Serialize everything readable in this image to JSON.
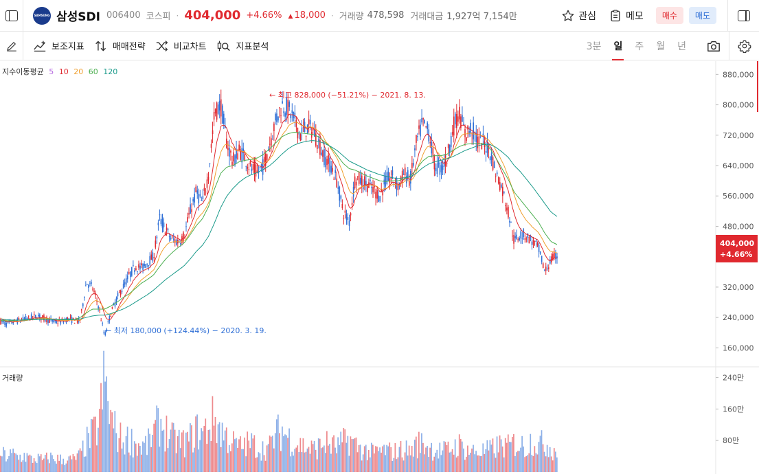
{
  "header": {
    "logo_text": "SAMSUNG",
    "name": "삼성SDI",
    "code": "006400",
    "market": "코스피",
    "price": "404,000",
    "change_rate": "+4.66%",
    "change_amount": "18,000",
    "volume_label": "거래량",
    "volume_value": "478,598",
    "amount_label": "거래대금",
    "amount_value": "1,927억 7,154만",
    "watch_label": "관심",
    "memo_label": "메모",
    "buy_label": "매수",
    "sell_label": "매도"
  },
  "toolbar": {
    "indicator_label": "보조지표",
    "strategy_label": "매매전략",
    "compare_label": "비교차트",
    "analysis_label": "지표분석",
    "periods": [
      "3분",
      "일",
      "주",
      "월",
      "년"
    ],
    "active_period": "일"
  },
  "colors": {
    "up": "#e0292f",
    "down": "#2f6fd6",
    "ma5": "#b466e0",
    "ma10": "#e0292f",
    "ma20": "#f0a030",
    "ma60": "#4caf50",
    "ma120": "#1a9a8a"
  },
  "chart_data": {
    "type": "line",
    "title": "",
    "ma_legend_label": "지수이동평균",
    "ma_periods": [
      "5",
      "10",
      "20",
      "60",
      "120"
    ],
    "price_axis_ticks": [
      "880,000",
      "800,000",
      "720,000",
      "640,000",
      "560,000",
      "480,000",
      "400,000",
      "320,000",
      "240,000",
      "160,000"
    ],
    "price_ylim": [
      110000,
      915000
    ],
    "current_price_label": "404,000",
    "current_change_label": "+4.66%",
    "high_annotation": "← 최고 828,000 (−51.21%) − 2021. 8. 13.",
    "low_annotation": "← 최저 180,000 (+124.44%) − 2020. 3. 19.",
    "price_series": [
      230000,
      222000,
      228000,
      232000,
      236000,
      240000,
      244000,
      238000,
      232000,
      228000,
      230000,
      236000,
      232000,
      230000,
      332000,
      320000,
      270000,
      190000,
      250000,
      290000,
      320000,
      350000,
      375000,
      370000,
      385000,
      400000,
      500000,
      470000,
      445000,
      440000,
      455000,
      520000,
      570000,
      540000,
      620000,
      780000,
      800000,
      700000,
      650000,
      680000,
      660000,
      630000,
      620000,
      640000,
      700000,
      760000,
      800000,
      790000,
      760000,
      720000,
      740000,
      735000,
      700000,
      660000,
      640000,
      600000,
      520000,
      490000,
      610000,
      600000,
      590000,
      575000,
      560000,
      600000,
      610000,
      585000,
      620000,
      600000,
      700000,
      750000,
      730000,
      640000,
      630000,
      660000,
      740000,
      780000,
      720000,
      740000,
      705000,
      700000,
      680000,
      620000,
      580000,
      520000,
      440000,
      460000,
      455000,
      440000,
      420000,
      360000,
      390000,
      404000
    ],
    "ma60_series": [
      232000,
      231000,
      232000,
      233000,
      234000,
      235000,
      236000,
      236000,
      236000,
      235000,
      234000,
      234000,
      234000,
      240000,
      252000,
      262000,
      262000,
      262000,
      270000,
      280000,
      292000,
      302000,
      316000,
      330000,
      340000,
      352000,
      374000,
      394000,
      410000,
      424000,
      436000,
      458000,
      482000,
      500000,
      532000,
      580000,
      620000,
      636000,
      640000,
      650000,
      654000,
      656000,
      660000,
      670000,
      684000,
      700000,
      716000,
      724000,
      728000,
      726000,
      724000,
      722000,
      716000,
      702000,
      688000,
      668000,
      646000,
      632000,
      628000,
      620000,
      612000,
      606000,
      600000,
      598000,
      600000,
      600000,
      605000,
      612000,
      630000,
      652000,
      664000,
      666000,
      666000,
      670000,
      680000,
      690000,
      696000,
      698000,
      698000,
      698000,
      686000,
      660000,
      632000,
      604000,
      570000,
      550000,
      530000,
      510000,
      490000,
      462000,
      440000,
      432000
    ],
    "ma120_series": [
      236000,
      234000,
      233000,
      233000,
      233000,
      234000,
      235000,
      235000,
      235000,
      235000,
      235000,
      235000,
      235000,
      236000,
      240000,
      244000,
      246000,
      246000,
      250000,
      256000,
      262000,
      270000,
      280000,
      290000,
      300000,
      312000,
      326000,
      340000,
      352000,
      364000,
      376000,
      394000,
      414000,
      430000,
      454000,
      490000,
      530000,
      560000,
      580000,
      596000,
      608000,
      616000,
      622000,
      630000,
      640000,
      654000,
      670000,
      684000,
      694000,
      700000,
      704000,
      706000,
      704000,
      698000,
      690000,
      680000,
      666000,
      652000,
      644000,
      636000,
      628000,
      622000,
      616000,
      612000,
      608000,
      606000,
      608000,
      610000,
      620000,
      634000,
      644000,
      650000,
      654000,
      658000,
      664000,
      672000,
      680000,
      686000,
      692000,
      696000,
      696000,
      688000,
      676000,
      662000,
      640000,
      624000,
      604000,
      584000,
      562000,
      540000,
      518000,
      506000
    ],
    "volume_axis_ticks": [
      "240만",
      "160만",
      "80만"
    ],
    "volume_ylim": [
      0,
      2550000
    ],
    "volume_label": "거래량",
    "volume_series": [
      450000,
      380000,
      420000,
      350000,
      400000,
      300000,
      330000,
      280000,
      360000,
      320000,
      300000,
      290000,
      310000,
      400000,
      700000,
      900000,
      1100000,
      2200000,
      1300000,
      900000,
      750000,
      800000,
      700000,
      600000,
      650000,
      900000,
      1200000,
      1000000,
      800000,
      750000,
      700000,
      800000,
      1000000,
      900000,
      1100000,
      1300000,
      1000000,
      850000,
      700000,
      600000,
      650000,
      700000,
      600000,
      550000,
      600000,
      900000,
      1000000,
      850000,
      700000,
      650000,
      600000,
      550000,
      600000,
      700000,
      650000,
      600000,
      700000,
      800000,
      650000,
      550000,
      500000,
      450000,
      500000,
      520000,
      480000,
      500000,
      550000,
      500000,
      650000,
      700000,
      600000,
      550000,
      500000,
      520000,
      600000,
      650000,
      550000,
      500000,
      480000,
      500000,
      520000,
      600000,
      650000,
      600000,
      700000,
      650000,
      600000,
      800000,
      650000,
      700000,
      600000,
      480000
    ]
  }
}
